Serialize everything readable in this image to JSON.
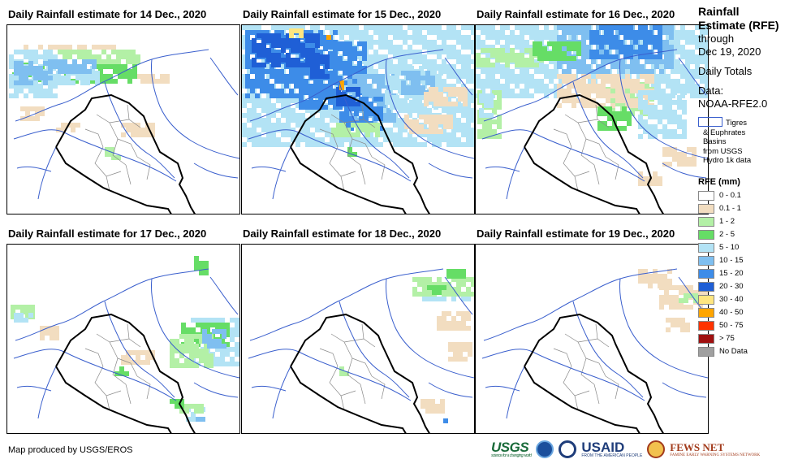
{
  "panels": [
    {
      "title": "Daily Rainfall estimate for 14 Dec., 2020",
      "date": "14 Dec., 2020"
    },
    {
      "title": "Daily Rainfall estimate for 15 Dec., 2020",
      "date": "15 Dec., 2020"
    },
    {
      "title": "Daily Rainfall estimate for 16 Dec., 2020",
      "date": "16 Dec., 2020"
    },
    {
      "title": "Daily Rainfall estimate for 17 Dec., 2020",
      "date": "17 Dec., 2020"
    },
    {
      "title": "Daily Rainfall estimate for 18 Dec., 2020",
      "date": "18 Dec., 2020"
    },
    {
      "title": "Daily Rainfall estimate for 19 Dec., 2020",
      "date": "19 Dec., 2020"
    }
  ],
  "sidebar": {
    "title": "Rainfall Estimate (RFE)",
    "through": "through",
    "through_date": "Dec 19, 2020",
    "totals_label": "Daily Totals",
    "data_label": "Data:",
    "data_source": "NOAA-RFE2.0",
    "basin_legend": {
      "line1": "Tigres",
      "line2": "& Euphrates",
      "line3": "Basins",
      "line4": "from USGS",
      "line5": "Hydro 1k data",
      "color": "#3a5fcd"
    }
  },
  "legend": {
    "title": "RFE (mm)",
    "items": [
      {
        "label": "0 - 0.1",
        "color": "#ffffff"
      },
      {
        "label": "0.1 - 1",
        "color": "#f2ddc0"
      },
      {
        "label": "1 - 2",
        "color": "#b3f0a6"
      },
      {
        "label": "2 - 5",
        "color": "#66dd66"
      },
      {
        "label": "5 - 10",
        "color": "#b3e3f5"
      },
      {
        "label": "10 - 15",
        "color": "#7fbff0"
      },
      {
        "label": "15 - 20",
        "color": "#3d8ce8"
      },
      {
        "label": "20 - 30",
        "color": "#1f5fd6"
      },
      {
        "label": "30 - 40",
        "color": "#ffe680"
      },
      {
        "label": "40 - 50",
        "color": "#ffa500"
      },
      {
        "label": "50 - 75",
        "color": "#ff3300"
      },
      {
        "label": "> 75",
        "color": "#a01010"
      },
      {
        "label": "No Data",
        "color": "#a0a0a0"
      }
    ]
  },
  "footer": {
    "credit": "Map produced by USGS/EROS",
    "logos": {
      "usgs": "USGS",
      "usgs_tagline": "science for a changing world",
      "usaid": "USAID",
      "usaid_tagline": "FROM THE AMERICAN PEOPLE",
      "fews": "FEWS NET",
      "fews_tagline": "FAMINE EARLY WARNING SYSTEMS NETWORK"
    }
  },
  "map_colors": {
    "border": "#000000",
    "rivers": "#3a5fcd",
    "districts": "#888888"
  }
}
